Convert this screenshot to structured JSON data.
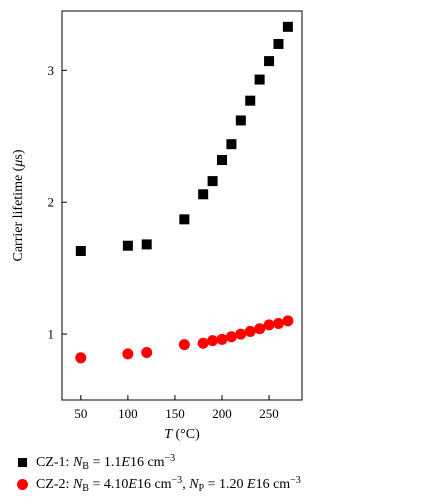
{
  "chart_data": {
    "type": "scatter",
    "xlabel": "T (°C)",
    "ylabel": "Carrier lifetime (μs)",
    "xlim": [
      30,
      285
    ],
    "ylim": [
      0.5,
      3.45
    ],
    "xticks": [
      50,
      100,
      150,
      200,
      250
    ],
    "yticks": [
      1,
      2,
      3
    ],
    "legend_position": "bottom",
    "series": [
      {
        "name": "CZ-1: NB = 1.1E16 cm−3",
        "marker": "square",
        "color": "#000000",
        "x": [
          50,
          100,
          120,
          160,
          180,
          190,
          200,
          210,
          220,
          230,
          240,
          250,
          260,
          270
        ],
        "y": [
          1.63,
          1.67,
          1.68,
          1.87,
          2.06,
          2.16,
          2.32,
          2.44,
          2.62,
          2.77,
          2.93,
          3.07,
          3.2,
          3.33
        ]
      },
      {
        "name": "CZ-2: NB = 4.10E16 cm−3, NP = 1.20 E16 cm−3",
        "marker": "circle",
        "color": "#ff0000",
        "x": [
          50,
          100,
          120,
          160,
          180,
          190,
          200,
          210,
          220,
          230,
          240,
          250,
          260,
          270
        ],
        "y": [
          0.82,
          0.85,
          0.86,
          0.92,
          0.93,
          0.95,
          0.96,
          0.98,
          1.0,
          1.02,
          1.04,
          1.07,
          1.08,
          1.1
        ]
      }
    ]
  },
  "legend": {
    "s1_prefix": "CZ-1: ",
    "s1_var": "N",
    "s1_sub": "B",
    "s1_eq": " = 1.1",
    "s1_E": "E",
    "s1_num": "16 cm",
    "s1_sup": "−3",
    "s2_prefix": "CZ-2: ",
    "s2_var": "N",
    "s2_sub": "B",
    "s2_eq": " = 4.10",
    "s2_E": "E",
    "s2_num": "16 cm",
    "s2_sup": "−3",
    "s2_sep": ", ",
    "s2_var2": "N",
    "s2_sub2": "P",
    "s2_eq2": " = 1.20 ",
    "s2_E2": "E",
    "s2_num2": "16 cm",
    "s2_sup2": "−3"
  }
}
